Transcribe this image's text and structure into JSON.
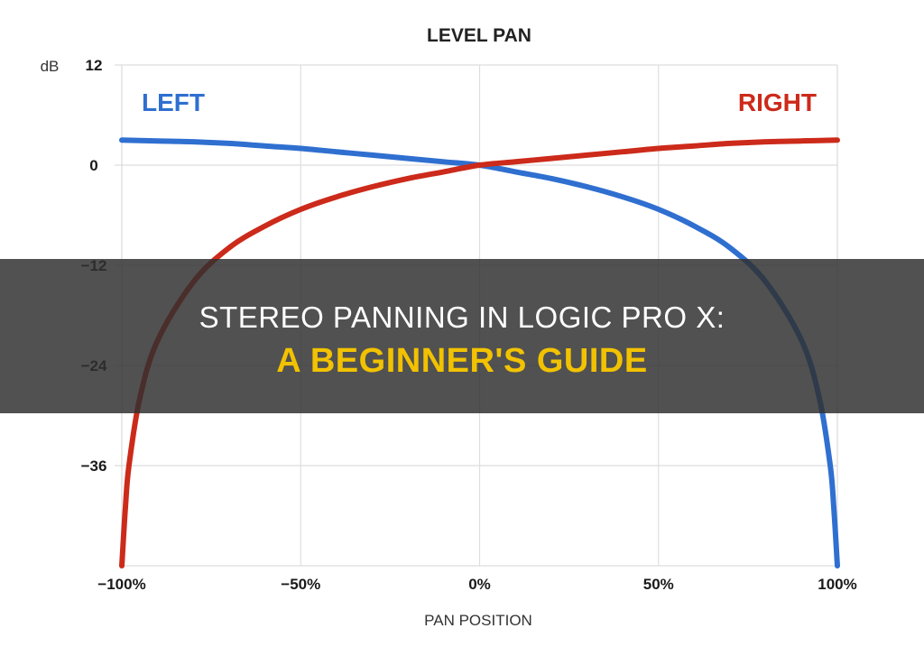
{
  "chart_data": {
    "type": "line",
    "title": "LEVEL PAN",
    "xlabel": "PAN POSITION",
    "ylabel": "dB",
    "x_ticks": [
      {
        "value": -100,
        "label": "−100%"
      },
      {
        "value": -50,
        "label": "−50%"
      },
      {
        "value": 0,
        "label": "0%"
      },
      {
        "value": 50,
        "label": "50%"
      },
      {
        "value": 100,
        "label": "100%"
      }
    ],
    "y_ticks": [
      {
        "value": 12,
        "label": "12"
      },
      {
        "value": 0,
        "label": "0"
      },
      {
        "value": -12,
        "label": "−12"
      },
      {
        "value": -24,
        "label": "−24"
      },
      {
        "value": -36,
        "label": "−36"
      }
    ],
    "xlim": [
      -100,
      100
    ],
    "ylim": [
      -48,
      12
    ],
    "grid": true,
    "series": [
      {
        "name": "LEFT",
        "color": "#2f6fd0",
        "x": [
          -100,
          -90,
          -80,
          -70,
          -60,
          -50,
          -40,
          -30,
          -20,
          -10,
          0,
          10,
          20,
          30,
          40,
          50,
          60,
          70,
          80,
          90,
          95,
          98,
          99,
          100
        ],
        "y": [
          3.0,
          2.9,
          2.8,
          2.6,
          2.3,
          2.0,
          1.6,
          1.2,
          0.8,
          0.4,
          0.0,
          -0.8,
          -1.6,
          -2.6,
          -3.8,
          -5.3,
          -7.3,
          -9.9,
          -14.0,
          -21.0,
          -28.0,
          -36.0,
          -41.0,
          -48.0
        ]
      },
      {
        "name": "RIGHT",
        "color": "#cc2a1a",
        "x": [
          -100,
          -99,
          -98,
          -95,
          -90,
          -80,
          -70,
          -60,
          -50,
          -40,
          -30,
          -20,
          -10,
          0,
          10,
          20,
          30,
          40,
          50,
          60,
          70,
          80,
          90,
          100
        ],
        "y": [
          -48.0,
          -41.0,
          -36.0,
          -28.0,
          -21.0,
          -14.0,
          -9.9,
          -7.3,
          -5.3,
          -3.8,
          -2.6,
          -1.6,
          -0.8,
          0.0,
          0.4,
          0.8,
          1.2,
          1.6,
          2.0,
          2.3,
          2.6,
          2.8,
          2.9,
          3.0
        ]
      }
    ]
  },
  "banner": {
    "line1": "STEREO PANNING IN LOGIC PRO X:",
    "line2": "A BEGINNER'S GUIDE"
  }
}
